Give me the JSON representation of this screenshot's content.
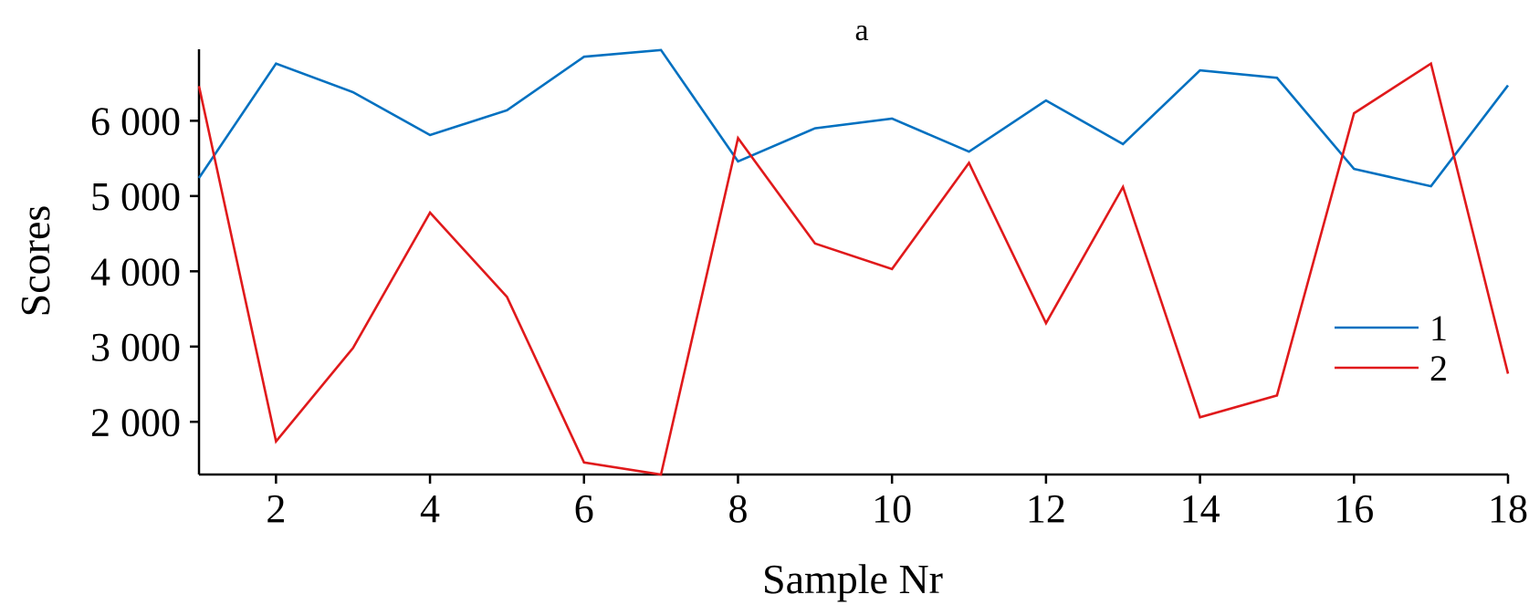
{
  "chart_data": {
    "type": "line",
    "title": "a",
    "xlabel": "Sample Nr",
    "ylabel": "Scores",
    "x": [
      1,
      2,
      3,
      4,
      5,
      6,
      7,
      8,
      9,
      10,
      11,
      12,
      13,
      14,
      15,
      16,
      17,
      18
    ],
    "xlim": [
      1,
      18
    ],
    "ylim": [
      1300,
      6950
    ],
    "x_ticks": [
      2,
      4,
      6,
      8,
      10,
      12,
      14,
      16,
      18
    ],
    "x_tick_labels": [
      "2",
      "4",
      "6",
      "8",
      "10",
      "12",
      "14",
      "16",
      "18"
    ],
    "y_ticks": [
      2000,
      3000,
      4000,
      5000,
      6000
    ],
    "y_tick_labels": [
      "2 000",
      "3 000",
      "4 000",
      "5 000",
      "6 000"
    ],
    "grid": false,
    "legend_position": "right",
    "series": [
      {
        "name": "1",
        "color": "#0070c0",
        "values": [
          5240,
          6760,
          6380,
          5810,
          6140,
          6850,
          6940,
          5460,
          5900,
          6030,
          5590,
          6270,
          5690,
          6670,
          6570,
          5360,
          5130,
          6470
        ]
      },
      {
        "name": "2",
        "color": "#e0191b",
        "values": [
          6460,
          1740,
          2980,
          4780,
          3660,
          1460,
          1300,
          5770,
          4370,
          4030,
          5440,
          3310,
          5120,
          2060,
          2350,
          6100,
          6760,
          2640
        ]
      }
    ]
  }
}
